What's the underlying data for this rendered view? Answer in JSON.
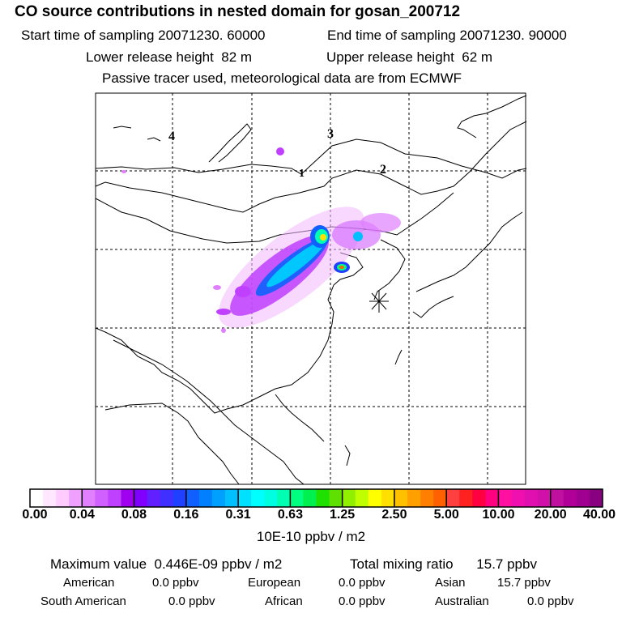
{
  "chart_data": {
    "type": "heatmap",
    "title": "CO  source contributions in nested domain for gosan_200712",
    "header": {
      "start_label": "Start time of sampling",
      "start_value": "20071230. 60000",
      "end_label": "End time of sampling",
      "end_value": "20071230. 90000",
      "lower_label": "Lower release height",
      "lower_value": "82 m",
      "upper_label": "Upper release height",
      "upper_value": "62 m",
      "tracer_note": "Passive tracer used, meteorological data are from ECMWF"
    },
    "grid_labels": [
      "4",
      "3",
      "2",
      "1"
    ],
    "receptor": "gosan",
    "colorbar": {
      "ticks": [
        "0.00",
        "0.04",
        "0.08",
        "0.16",
        "0.31",
        "0.63",
        "1.25",
        "2.50",
        "5.00",
        "10.00",
        "20.00",
        "40.00"
      ],
      "units": "10E-10 ppbv / m2",
      "colors": [
        "#ffffff",
        "#ffe8ff",
        "#ffccff",
        "#f0a0ff",
        "#e080ff",
        "#d060ff",
        "#c040ff",
        "#a000f0",
        "#8000ff",
        "#6020ff",
        "#4030ff",
        "#2040ff",
        "#1060ff",
        "#0080ff",
        "#00a0ff",
        "#00c0ff",
        "#00e0ff",
        "#00ffff",
        "#00ffe0",
        "#00ffb0",
        "#00ff80",
        "#00f050",
        "#20e000",
        "#60e000",
        "#90f000",
        "#c0ff00",
        "#ffff00",
        "#ffe000",
        "#ffc000",
        "#ffa000",
        "#ff8000",
        "#ff6000",
        "#ff4040",
        "#ff2020",
        "#ff0040",
        "#ff0080",
        "#ff10a0",
        "#f010b0",
        "#e010b0",
        "#d010a8",
        "#c010a0",
        "#b00098",
        "#a00090",
        "#880080"
      ]
    },
    "summary": {
      "max_label": "Maximum value",
      "max_value": "0.446E-09 ppbv / m2",
      "total_label": "Total mixing ratio",
      "total_value": "15.7 ppbv"
    },
    "regions": [
      {
        "name": "American",
        "value": "0.0 ppbv"
      },
      {
        "name": "European",
        "value": "0.0 ppbv"
      },
      {
        "name": "Asian",
        "value": "15.7 ppbv"
      },
      {
        "name": "South American",
        "value": "0.0 ppbv"
      },
      {
        "name": "African",
        "value": "0.0 ppbv"
      },
      {
        "name": "Australian",
        "value": "0.0 ppbv"
      }
    ]
  }
}
